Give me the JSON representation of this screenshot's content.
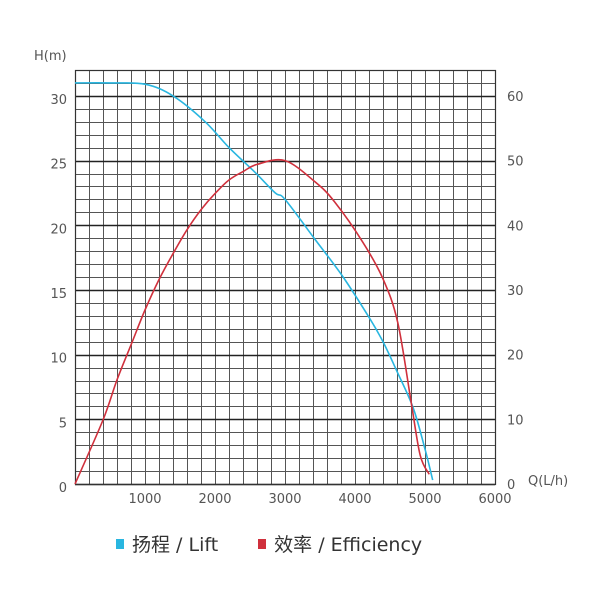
{
  "chart_data": {
    "type": "line",
    "title": "",
    "xlabel": "Q(L/h)",
    "ylabel": "H(m)",
    "y2label": "",
    "xlim": [
      0,
      6000
    ],
    "ylim": [
      0,
      32
    ],
    "y2lim": [
      0,
      64
    ],
    "x_ticks": [
      1000,
      2000,
      3000,
      4000,
      5000,
      6000
    ],
    "y_ticks": [
      0,
      5,
      10,
      15,
      20,
      25,
      30
    ],
    "y2_ticks": [
      0,
      10,
      20,
      30,
      40,
      50,
      60
    ],
    "grid": true,
    "grid_minor_x": 200,
    "grid_minor_y": 1,
    "legend_position": "bottom",
    "series": [
      {
        "name": "扬程 / Lift",
        "axis": "left",
        "color": "#29b6e0",
        "points": [
          [
            0,
            31
          ],
          [
            500,
            31
          ],
          [
            1000,
            30.9
          ],
          [
            1400,
            30
          ],
          [
            1860,
            28
          ],
          [
            2200,
            26
          ],
          [
            2570,
            24.1
          ],
          [
            2860,
            22.5
          ],
          [
            3000,
            22
          ],
          [
            3430,
            18.9
          ],
          [
            3830,
            16
          ],
          [
            4210,
            12.8
          ],
          [
            4400,
            11
          ],
          [
            4600,
            8.7
          ],
          [
            4830,
            5.9
          ],
          [
            5000,
            2.7
          ],
          [
            5110,
            0.3
          ]
        ]
      },
      {
        "name": "效率 / Efficiency",
        "axis": "right",
        "color": "#d0303c",
        "points": [
          [
            0,
            0
          ],
          [
            400,
            9.9
          ],
          [
            600,
            16.1
          ],
          [
            800,
            21.5
          ],
          [
            1000,
            26.9
          ],
          [
            1200,
            31.6
          ],
          [
            1400,
            35.6
          ],
          [
            1600,
            39.3
          ],
          [
            1800,
            42.4
          ],
          [
            2000,
            44.9
          ],
          [
            2200,
            47.0
          ],
          [
            2400,
            48.3
          ],
          [
            2600,
            49.4
          ],
          [
            3000,
            50
          ],
          [
            3430,
            46.7
          ],
          [
            3710,
            43.6
          ],
          [
            4110,
            37.4
          ],
          [
            4400,
            31.7
          ],
          [
            4610,
            25
          ],
          [
            4800,
            12.8
          ],
          [
            4930,
            4.5
          ],
          [
            5060,
            1.5
          ]
        ]
      }
    ]
  },
  "legend": {
    "items": [
      {
        "label": "扬程 / Lift",
        "color": "#29b6e0"
      },
      {
        "label": "效率 / Efficiency",
        "color": "#d0303c"
      }
    ]
  },
  "axes": {
    "y_left_label": "H(m)",
    "x_label": "Q(L/h)"
  }
}
